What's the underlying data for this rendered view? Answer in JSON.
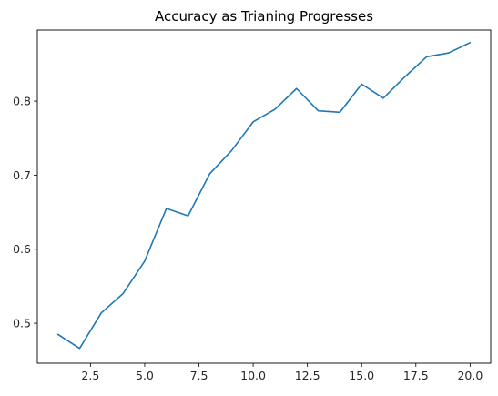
{
  "chart_data": {
    "type": "line",
    "title": "Accuracy as Trianing Progresses",
    "xlabel": "",
    "ylabel": "",
    "xlim": [
      0.05,
      20.95
    ],
    "ylim": [
      0.446,
      0.896
    ],
    "x_ticks": [
      2.5,
      5.0,
      7.5,
      10.0,
      12.5,
      15.0,
      17.5,
      20.0
    ],
    "x_tick_labels": [
      "2.5",
      "5.0",
      "7.5",
      "10.0",
      "12.5",
      "15.0",
      "17.5",
      "20.0"
    ],
    "y_ticks": [
      0.5,
      0.6,
      0.7,
      0.8
    ],
    "y_tick_labels": [
      "0.5",
      "0.6",
      "0.7",
      "0.8"
    ],
    "grid": false,
    "series": [
      {
        "color": "#1f77b4",
        "x": [
          1,
          2,
          3,
          4,
          5,
          6,
          7,
          8,
          9,
          10,
          11,
          12,
          13,
          14,
          15,
          16,
          17,
          18,
          19,
          20
        ],
        "y": [
          0.485,
          0.466,
          0.514,
          0.54,
          0.584,
          0.655,
          0.645,
          0.702,
          0.733,
          0.772,
          0.789,
          0.817,
          0.787,
          0.785,
          0.823,
          0.804,
          0.833,
          0.86,
          0.865,
          0.879
        ]
      }
    ]
  }
}
